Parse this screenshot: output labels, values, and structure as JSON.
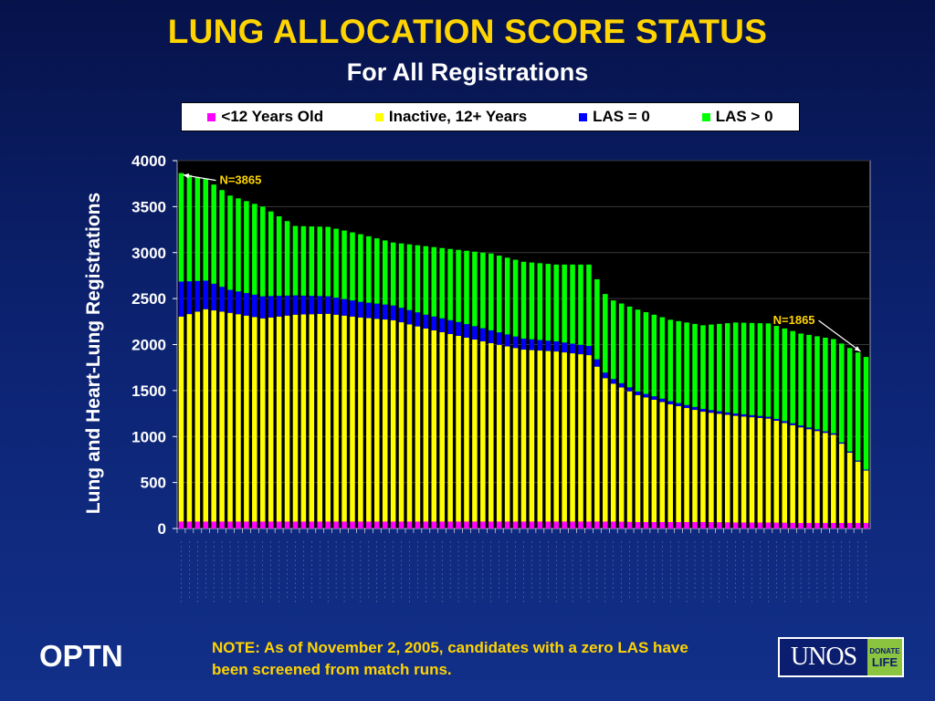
{
  "chart_data": {
    "type": "bar",
    "stacked": true,
    "title": "LUNG ALLOCATION SCORE STATUS",
    "subtitle": "For All Registrations",
    "ylabel": "Lung and Heart-Lung Registrations",
    "ylim": [
      0,
      4000
    ],
    "yticks": [
      "0",
      "500",
      "1000",
      "1500",
      "2000",
      "2500",
      "3000",
      "3500",
      "4000"
    ],
    "grid": true,
    "legend_position": "top",
    "series": [
      {
        "name": "<12 Years Old",
        "color": "#ff00ff"
      },
      {
        "name": "Inactive, 12+ Years",
        "color": "#ffff00"
      },
      {
        "name": "LAS = 0",
        "color": "#0000ff"
      },
      {
        "name": "LAS > 0",
        "color": "#00ff00"
      }
    ],
    "n_points": 85,
    "keypoints": {
      "index": [
        0,
        3,
        6,
        10,
        14,
        18,
        22,
        26,
        30,
        34,
        38,
        42,
        46,
        50,
        52,
        53,
        56,
        60,
        64,
        68,
        72,
        76,
        80,
        84
      ],
      "young": [
        75,
        75,
        75,
        75,
        75,
        75,
        75,
        75,
        75,
        75,
        75,
        75,
        75,
        75,
        75,
        75,
        70,
        70,
        70,
        65,
        65,
        60,
        60,
        60
      ],
      "inactive": [
        2230,
        2310,
        2270,
        2210,
        2250,
        2260,
        2220,
        2190,
        2100,
        2020,
        1940,
        1870,
        1850,
        1810,
        1560,
        1500,
        1380,
        1280,
        1200,
        1160,
        1130,
        1040,
        960,
        570
      ],
      "las0": [
        380,
        310,
        250,
        240,
        210,
        190,
        170,
        160,
        150,
        150,
        140,
        120,
        110,
        100,
        60,
        50,
        40,
        35,
        30,
        25,
        20,
        20,
        15,
        10
      ],
      "total": [
        3865,
        3800,
        3620,
        3500,
        3290,
        3280,
        3200,
        3110,
        3070,
        3030,
        2990,
        2900,
        2870,
        2870,
        2550,
        2480,
        2380,
        2270,
        2210,
        2240,
        2230,
        2120,
        2060,
        1865
      ]
    },
    "annotations": [
      {
        "text": "N=3865",
        "index": 0,
        "value": 3865
      },
      {
        "text": "N=1865",
        "index": 84,
        "value": 1865
      }
    ]
  },
  "footer": {
    "brand": "OPTN",
    "note": "NOTE: As of November 2, 2005, candidates with a zero LAS have been screened from match runs.",
    "logo_text": "UNOS",
    "logo_badge_top": "DONATE",
    "logo_badge_bottom": "LIFE"
  },
  "colors": {
    "title": "#ffd400",
    "plot_background": "#000000",
    "slide_background": "#0c2270",
    "annotation": "#ffd400"
  }
}
